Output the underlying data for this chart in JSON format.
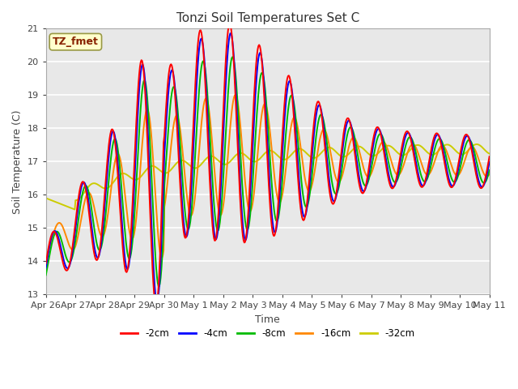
{
  "title": "Tonzi Soil Temperatures Set C",
  "xlabel": "Time",
  "ylabel": "Soil Temperature (C)",
  "ylim": [
    13.0,
    21.0
  ],
  "yticks": [
    13.0,
    14.0,
    15.0,
    16.0,
    17.0,
    18.0,
    19.0,
    20.0,
    21.0
  ],
  "xtick_labels": [
    "Apr 26",
    "Apr 27",
    "Apr 28",
    "Apr 29",
    "Apr 30",
    "May 1",
    "May 2",
    "May 3",
    "May 4",
    "May 5",
    "May 6",
    "May 7",
    "May 8",
    "May 9",
    "May 10",
    "May 11"
  ],
  "legend_labels": [
    "-2cm",
    "-4cm",
    "-8cm",
    "-16cm",
    "-32cm"
  ],
  "legend_colors": [
    "#ff0000",
    "#0000ff",
    "#00bb00",
    "#ff8800",
    "#cccc00"
  ],
  "annotation_text": "TZ_fmet",
  "annotation_color": "#882200",
  "annotation_bg": "#ffffcc",
  "annotation_edge": "#999944",
  "plot_bg": "#e8e8e8",
  "fig_bg": "#ffffff",
  "grid_color": "#ffffff",
  "line_width": 1.4,
  "num_points": 600
}
